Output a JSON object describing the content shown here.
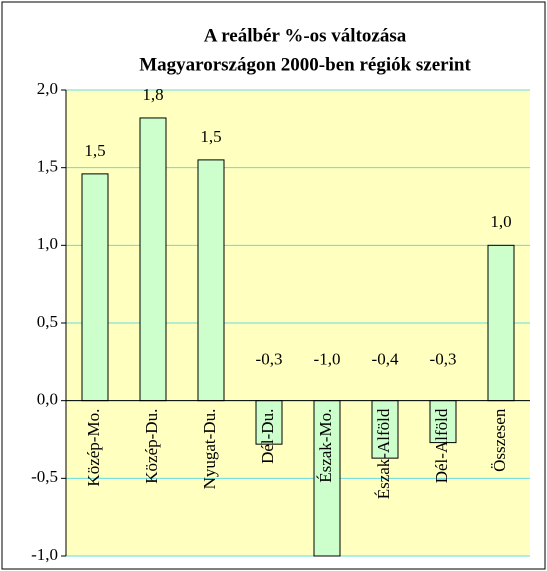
{
  "chart_data": {
    "type": "bar",
    "title": [
      "A reálbér %-os változása",
      "Magyarországon 2000-ben régiók szerint"
    ],
    "categories": [
      "Közép-Mo.",
      "Közép-Du.",
      "Nyugat-Du.",
      "Dél-Du.",
      "Észak-Mo.",
      "Észak-Alföld",
      "Dél-Alföld",
      "Összesen"
    ],
    "values": [
      1.46,
      1.82,
      1.55,
      -0.28,
      -1.0,
      -0.37,
      -0.27,
      1.0
    ],
    "value_labels": [
      "1,5",
      "1,8",
      "1,5",
      "-0,3",
      "-1,0",
      "-0,4",
      "-0,3",
      "1,0"
    ],
    "color": "#ccffcc",
    "ylim": [
      -1,
      2
    ],
    "yticks": [
      {
        "value": -1,
        "label": "-1,0"
      },
      {
        "value": -0.5,
        "label": "-0,5"
      },
      {
        "value": 0,
        "label": "0,0"
      },
      {
        "value": 0.5,
        "label": "0,5"
      },
      {
        "value": 1,
        "label": "1,0"
      },
      {
        "value": 1.5,
        "label": "1,5"
      },
      {
        "value": 2,
        "label": "2,0"
      }
    ],
    "grid": true
  }
}
